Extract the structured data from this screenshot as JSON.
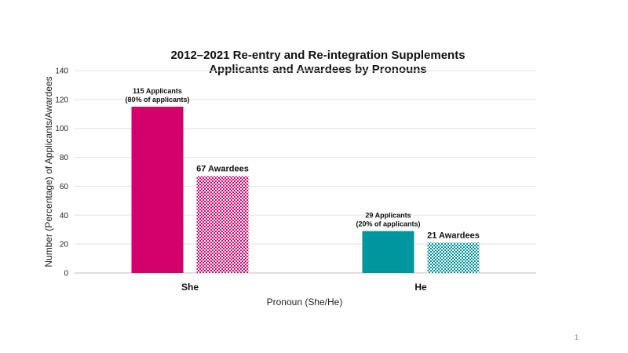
{
  "page_number": "1",
  "chart_data": {
    "type": "bar",
    "title_lines": [
      "2012–2021 Re-entry and Re-integration Supplements",
      "Applicants and Awardees by Pronouns"
    ],
    "xlabel": "Pronoun (She/He)",
    "ylabel": "Number (Percentage) of Applicants/Awardees",
    "ylim": [
      0,
      140
    ],
    "yticks": [
      0,
      20,
      40,
      60,
      80,
      100,
      120,
      140
    ],
    "grid": true,
    "categories": [
      "She",
      "He"
    ],
    "series": [
      {
        "values": [
          115,
          29
        ],
        "pattern": "solid",
        "labels": [
          [
            "115 Applicants",
            "(80% of applicants)"
          ],
          [
            "29 Applicants",
            "(20% of applicants)"
          ]
        ]
      },
      {
        "values": [
          67,
          21
        ],
        "pattern": "checkered",
        "labels": [
          [
            "67 Awardees"
          ],
          [
            "21 Awardees"
          ]
        ]
      }
    ],
    "category_colors": [
      "#d4006c",
      "#00969f"
    ]
  }
}
